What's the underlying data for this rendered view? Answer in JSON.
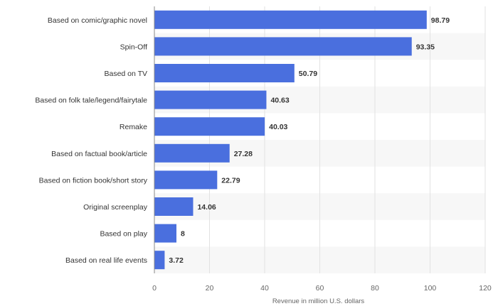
{
  "chart_data": {
    "type": "bar",
    "orientation": "horizontal",
    "categories": [
      "Based on comic/graphic novel",
      "Spin-Off",
      "Based on TV",
      "Based on folk tale/legend/fairytale",
      "Remake",
      "Based on factual book/article",
      "Based on fiction book/short story",
      "Original screenplay",
      "Based on play",
      "Based on real life events"
    ],
    "values": [
      98.79,
      93.35,
      50.79,
      40.63,
      40.03,
      27.28,
      22.79,
      14.06,
      8,
      3.72
    ],
    "value_labels": [
      "98.79",
      "93.35",
      "50.79",
      "40.63",
      "40.03",
      "27.28",
      "22.79",
      "14.06",
      "8",
      "3.72"
    ],
    "xlabel": "Revenue in million U.S. dollars",
    "xlim": [
      0,
      120
    ],
    "xticks": [
      0,
      20,
      40,
      60,
      80,
      100,
      120
    ],
    "grid": true,
    "colors": {
      "bar": "#4a6fde",
      "stripe": "#f7f7f7",
      "grid": "#e2e2e2",
      "axis": "#888888"
    }
  }
}
